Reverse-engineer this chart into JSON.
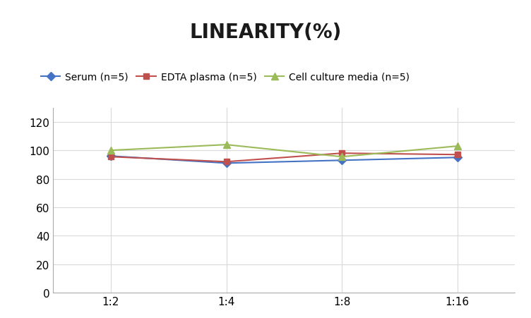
{
  "title": "LINEARITY(%)",
  "x_labels": [
    "1:2",
    "1:4",
    "1:8",
    "1:16"
  ],
  "x_positions": [
    0,
    1,
    2,
    3
  ],
  "series": [
    {
      "name": "Serum (n=5)",
      "values": [
        96.0,
        91.0,
        93.0,
        95.0
      ],
      "color": "#4472C4",
      "marker": "D",
      "linewidth": 1.5,
      "markersize": 6
    },
    {
      "name": "EDTA plasma (n=5)",
      "values": [
        95.5,
        92.0,
        98.0,
        97.0
      ],
      "color": "#C0504D",
      "marker": "s",
      "linewidth": 1.5,
      "markersize": 6
    },
    {
      "name": "Cell culture media (n=5)",
      "values": [
        100.0,
        104.0,
        95.5,
        103.0
      ],
      "color": "#9BBB59",
      "marker": "^",
      "linewidth": 1.5,
      "markersize": 7
    }
  ],
  "ylim": [
    0,
    130
  ],
  "yticks": [
    0,
    20,
    40,
    60,
    80,
    100,
    120
  ],
  "grid_color": "#D9D9D9",
  "background_color": "#FFFFFF",
  "title_fontsize": 20,
  "legend_fontsize": 10,
  "tick_fontsize": 11
}
